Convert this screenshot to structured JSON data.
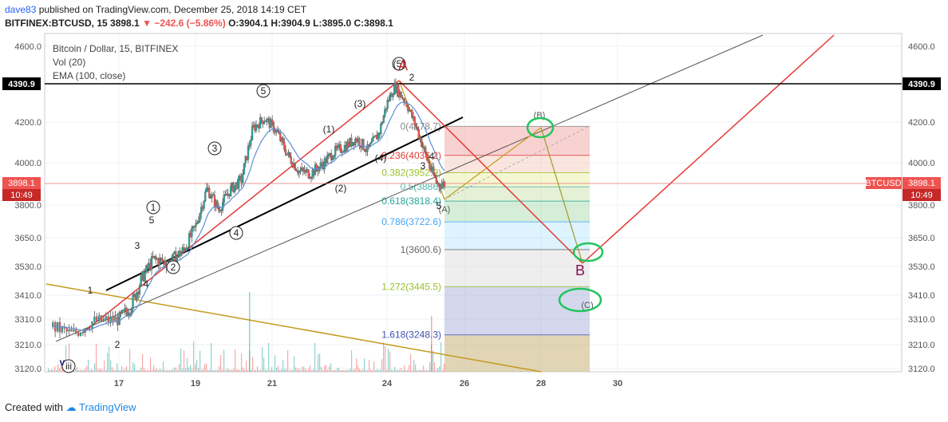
{
  "header": {
    "user": "dave83",
    "published": "published on TradingView.com, December 25, 2018 14:19 CET",
    "symbol": "BITFINEX:BTCUSD, 15",
    "last": "3898.1",
    "change": "−242.6 (−5.86%)",
    "ohlc": "O:3904.1 H:3904.9 L:3895.0 C:3898.1"
  },
  "legend": {
    "title": "Bitcoin / Dollar, 15, BITFINEX",
    "vol": "Vol (20)",
    "ema": "EMA (100, close)"
  },
  "footer": {
    "created": "Created with",
    "brand": "TradingView"
  },
  "colors": {
    "up": "#26a69a",
    "down": "#ef5350",
    "price_line": "#e57373",
    "wave_red": "#e53935",
    "ema": "#5c8fd6",
    "trend_gold": "#c49a1c",
    "circle_green": "#22c55e"
  },
  "chart_data": {
    "type": "candlestick",
    "timeframe": "15",
    "x_ticks": [
      "17",
      "19",
      "21",
      "24",
      "26",
      "28",
      "30"
    ],
    "y_ticks": [
      3120,
      3210,
      3310,
      3410,
      3530,
      3650,
      3800,
      4000,
      4200,
      4600
    ],
    "ylim": [
      3110,
      4650
    ],
    "last_price": {
      "label": "BTCUSD",
      "value": "3898.1",
      "countdown": "10:49"
    },
    "horizontal_line": {
      "value": "4390.9"
    },
    "close_path": [
      [
        "16",
        3280
      ],
      [
        "16.3",
        3250
      ],
      [
        "16.6",
        3300
      ],
      [
        "17.0",
        3310
      ],
      [
        "17.3",
        3360
      ],
      [
        "17.6",
        3480
      ],
      [
        "17.9",
        3560
      ],
      [
        "18.3",
        3545
      ],
      [
        "18.7",
        3600
      ],
      [
        "19.0",
        3700
      ],
      [
        "19.3",
        3880
      ],
      [
        "19.6",
        3780
      ],
      [
        "19.9",
        3870
      ],
      [
        "20.2",
        3920
      ],
      [
        "20.5",
        4170
      ],
      [
        "20.8",
        4220
      ],
      [
        "21.1",
        4160
      ],
      [
        "21.4",
        4040
      ],
      [
        "21.7",
        3960
      ],
      [
        "22.0",
        3950
      ],
      [
        "22.3",
        3990
      ],
      [
        "22.6",
        4050
      ],
      [
        "22.9",
        4080
      ],
      [
        "23.2",
        4120
      ],
      [
        "23.5",
        4060
      ],
      [
        "23.8",
        4150
      ],
      [
        "24.0",
        4300
      ],
      [
        "24.2",
        4390
      ],
      [
        "24.5",
        4300
      ],
      [
        "24.8",
        4150
      ],
      [
        "25.1",
        3980
      ],
      [
        "25.3",
        3900
      ],
      [
        "25.5",
        3898
      ]
    ],
    "fibonacci": [
      {
        "label": "0(4178.7)",
        "value": 4178.7
      },
      {
        "label": "0.236(4036.2)",
        "value": 4036.2
      },
      {
        "label": "0.382(3952.9)",
        "value": 3952.9
      },
      {
        "label": "0.5(3886)",
        "value": 3886.0
      },
      {
        "label": "0.618(3818.4)",
        "value": 3818.4
      },
      {
        "label": "0.786(3722.6)",
        "value": 3722.6
      },
      {
        "label": "1(3600.6)",
        "value": 3600.6
      },
      {
        "label": "1.272(3445.5)",
        "value": 3445.5
      },
      {
        "label": "1.618(3248.3)",
        "value": 3248.3
      }
    ],
    "wave_labels": [
      {
        "text": "iii"
      },
      {
        "text": "v"
      },
      {
        "text": "1"
      },
      {
        "text": "2"
      },
      {
        "text": "3"
      },
      {
        "text": "4"
      },
      {
        "text": "5"
      },
      {
        "text": "1"
      },
      {
        "text": "2"
      },
      {
        "text": "3"
      },
      {
        "text": "4"
      },
      {
        "text": "5"
      },
      {
        "text": "(1)"
      },
      {
        "text": "(2)"
      },
      {
        "text": "(3)"
      },
      {
        "text": "(4)"
      },
      {
        "text": "(5)"
      },
      {
        "text": "A"
      },
      {
        "text": "(B)"
      },
      {
        "text": "B"
      },
      {
        "text": "(C)"
      },
      {
        "text": "(A)"
      },
      {
        "text": "2"
      },
      {
        "text": "3"
      },
      {
        "text": "4"
      },
      {
        "text": "5"
      }
    ],
    "grid": true
  }
}
